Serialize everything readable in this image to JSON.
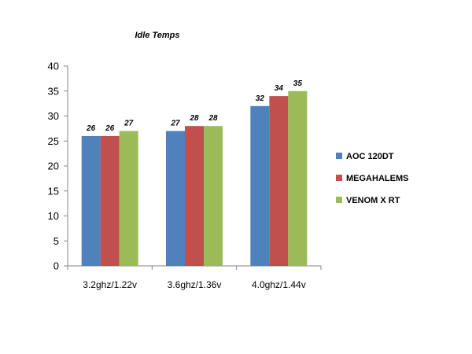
{
  "chart_data": {
    "type": "bar",
    "title": "Idle Temps",
    "categories": [
      "3.2ghz/1.22v",
      "3.6ghz/1.36v",
      "4.0ghz/1.44v"
    ],
    "series": [
      {
        "name": "AOC 120DT",
        "values": [
          26,
          27,
          32
        ],
        "color": "#4f81bd"
      },
      {
        "name": "MEGAHALEMS",
        "values": [
          26,
          28,
          34
        ],
        "color": "#c0504d"
      },
      {
        "name": "VENOM X RT",
        "values": [
          27,
          28,
          35
        ],
        "color": "#9bbb59"
      }
    ],
    "yticks": [
      0,
      5,
      10,
      15,
      20,
      25,
      30,
      35,
      40
    ],
    "ylim": [
      0,
      40
    ],
    "grid": false,
    "legend_position": "right",
    "data_labels": true
  }
}
